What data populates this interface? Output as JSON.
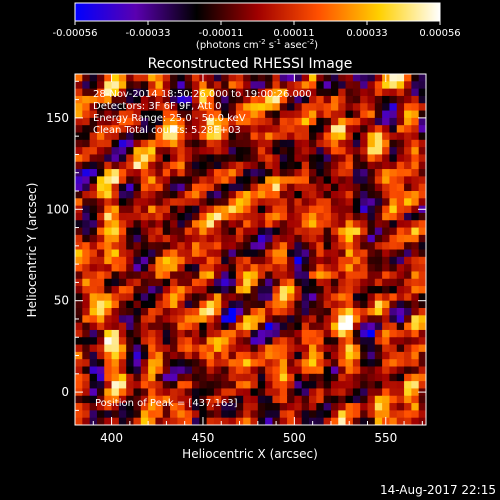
{
  "chart_data": {
    "type": "heatmap",
    "title": "Reconstructed RHESSI Image",
    "xlabel": "Heliocentric X (arcsec)",
    "ylabel": "Heliocentric Y (arcsec)",
    "xlim": [
      380,
      572
    ],
    "ylim": [
      -18,
      174
    ],
    "x_ticks": [
      400,
      450,
      500,
      550
    ],
    "y_ticks": [
      0,
      50,
      100,
      150
    ],
    "colorbar": {
      "range": [
        -0.00056,
        0.00056
      ],
      "ticks": [
        "-0.00056",
        "-0.00033",
        "-0.00011",
        "0.00011",
        "0.00033",
        "0.00056"
      ],
      "label_prefix": "(photons cm",
      "label_exp1": "-2",
      "label_mid": " s",
      "label_exp2": "-1",
      "label_mid2": " asec",
      "label_exp3": "-2",
      "label_suffix": ")",
      "colors": [
        "#0000ff",
        "#5a00b0",
        "#000000",
        "#a00000",
        "#ff5000",
        "#ffd000",
        "#ffffff"
      ]
    },
    "annotations": [
      "28-Nov-2014 18:50:26.000 to 19:00:26.000",
      "Detectors: 3F 6F 9F, Att 0",
      "Energy Range: 25.0 - 50.0 keV",
      "Clean    Total counts: 5.28E+03"
    ],
    "peak_label": "Position of Peak = [437,163]",
    "peak": [
      437,
      163
    ],
    "grid": false
  },
  "footer": {
    "timestamp": "14-Aug-2017 22:15"
  }
}
